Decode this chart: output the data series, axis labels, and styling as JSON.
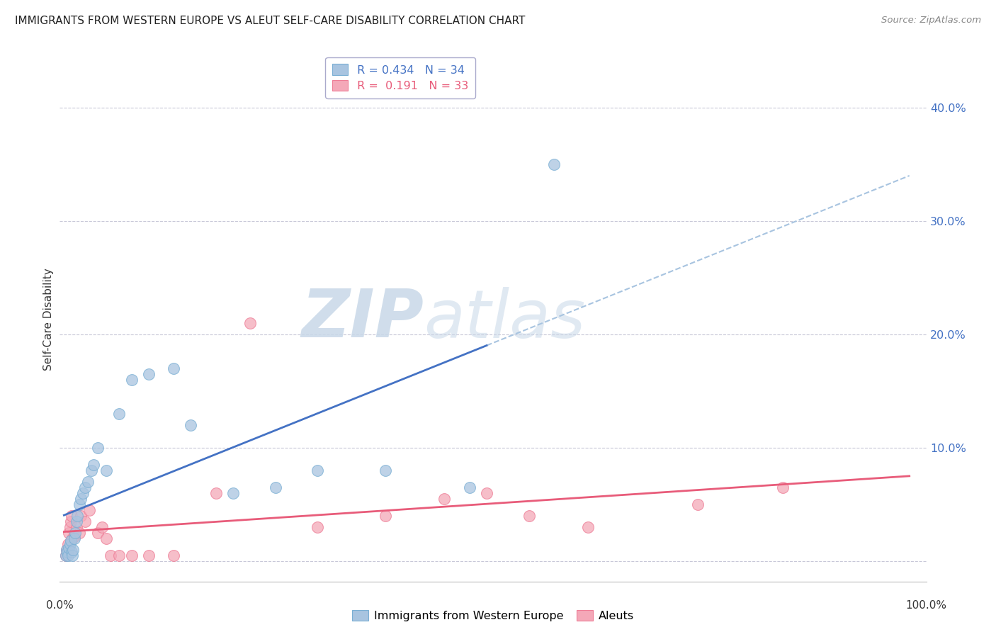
{
  "title": "IMMIGRANTS FROM WESTERN EUROPE VS ALEUT SELF-CARE DISABILITY CORRELATION CHART",
  "source": "Source: ZipAtlas.com",
  "ylabel": "Self-Care Disability",
  "y_ticks": [
    0.0,
    0.1,
    0.2,
    0.3,
    0.4
  ],
  "y_tick_labels": [
    "",
    "10.0%",
    "20.0%",
    "30.0%",
    "40.0%"
  ],
  "x_range": [
    -0.005,
    1.02
  ],
  "y_range": [
    -0.018,
    0.445
  ],
  "legend_blue_r": "0.434",
  "legend_blue_n": "34",
  "legend_pink_r": "0.191",
  "legend_pink_n": "33",
  "legend_blue_label": "Immigrants from Western Europe",
  "legend_pink_label": "Aleuts",
  "blue_color": "#A8C4E0",
  "pink_color": "#F4A8B8",
  "blue_edge_color": "#7AAFD4",
  "pink_edge_color": "#EE7D96",
  "blue_line_color": "#4472C4",
  "pink_line_color": "#E85C7A",
  "dashed_line_color": "#A8C4E0",
  "watermark_zip": "ZIP",
  "watermark_atlas": "atlas",
  "background_color": "#FFFFFF",
  "grid_color": "#C8C8D8",
  "blue_scatter_x": [
    0.002,
    0.003,
    0.004,
    0.005,
    0.006,
    0.007,
    0.008,
    0.009,
    0.01,
    0.011,
    0.012,
    0.013,
    0.015,
    0.016,
    0.018,
    0.02,
    0.022,
    0.025,
    0.028,
    0.032,
    0.035,
    0.04,
    0.05,
    0.065,
    0.08,
    0.1,
    0.13,
    0.15,
    0.2,
    0.25,
    0.3,
    0.38,
    0.48,
    0.58
  ],
  "blue_scatter_y": [
    0.005,
    0.01,
    0.008,
    0.005,
    0.012,
    0.015,
    0.018,
    0.008,
    0.005,
    0.01,
    0.02,
    0.025,
    0.035,
    0.04,
    0.05,
    0.055,
    0.06,
    0.065,
    0.07,
    0.08,
    0.085,
    0.1,
    0.08,
    0.13,
    0.16,
    0.165,
    0.17,
    0.12,
    0.06,
    0.065,
    0.08,
    0.08,
    0.065,
    0.35
  ],
  "pink_scatter_x": [
    0.002,
    0.003,
    0.004,
    0.005,
    0.006,
    0.007,
    0.008,
    0.009,
    0.01,
    0.012,
    0.015,
    0.018,
    0.02,
    0.025,
    0.03,
    0.04,
    0.045,
    0.05,
    0.055,
    0.065,
    0.08,
    0.1,
    0.13,
    0.18,
    0.22,
    0.3,
    0.38,
    0.45,
    0.5,
    0.55,
    0.62,
    0.75,
    0.85
  ],
  "pink_scatter_y": [
    0.005,
    0.01,
    0.008,
    0.015,
    0.025,
    0.03,
    0.035,
    0.04,
    0.02,
    0.022,
    0.03,
    0.025,
    0.04,
    0.035,
    0.045,
    0.025,
    0.03,
    0.02,
    0.005,
    0.005,
    0.005,
    0.005,
    0.005,
    0.06,
    0.21,
    0.03,
    0.04,
    0.055,
    0.06,
    0.04,
    0.03,
    0.05,
    0.065
  ],
  "blue_line_x_start": 0.0,
  "blue_line_x_solid_end": 0.5,
  "blue_line_x_dashed_end": 1.0,
  "pink_line_x_start": 0.0,
  "pink_line_x_end": 1.0,
  "scatter_size": 130
}
